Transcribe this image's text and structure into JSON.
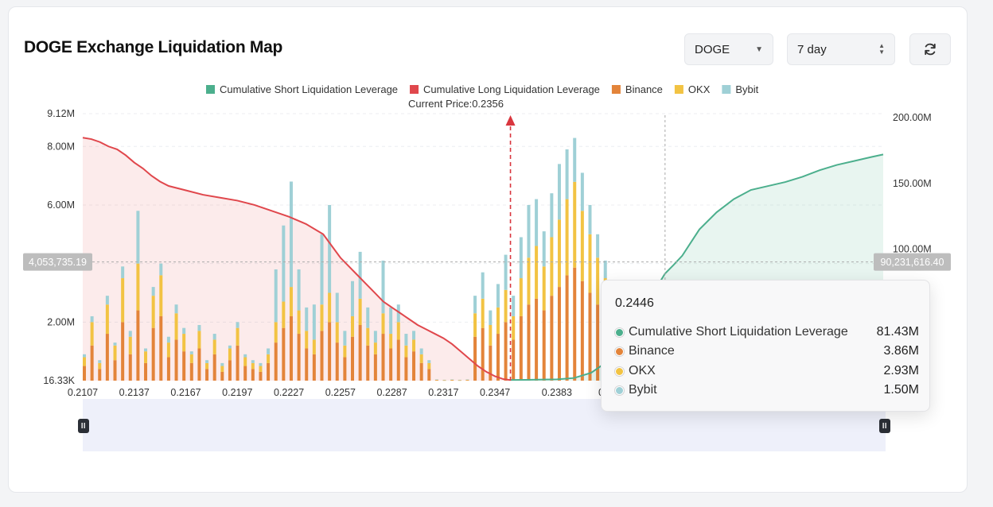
{
  "header": {
    "title": "DOGE Exchange Liquidation Map",
    "symbol_select": "DOGE",
    "period_select": "7 day"
  },
  "colors": {
    "short": "#4caf8d",
    "long": "#e0474c",
    "binance": "#e3843a",
    "okx": "#f2c343",
    "bybit": "#9fd0d6"
  },
  "chart_data": {
    "type": "bar",
    "title": "",
    "current_price_label": "Current Price:0.2356",
    "current_price": 0.2356,
    "legend": [
      "Cumulative Short Liquidation Leverage",
      "Cumulative Long Liquidation Leverage",
      "Binance",
      "OKX",
      "Bybit"
    ],
    "legend_position": "top",
    "x_range": [
      0.2107,
      0.2573
    ],
    "x_ticks": [
      "0.2107",
      "0.2137",
      "0.2167",
      "0.2197",
      "0.2227",
      "0.2257",
      "0.2287",
      "0.2317",
      "0.2347",
      "0.2383",
      "0.2416",
      "0.2446"
    ],
    "y_left_ticks": [
      "9.12M",
      "8.00M",
      "6.00M",
      "2.00M",
      "16.33K"
    ],
    "y_left_range": [
      16330,
      9120000
    ],
    "y_right_ticks": [
      "200.00M",
      "150.00M",
      "100.00M"
    ],
    "y_right_range": [
      0,
      200000000
    ],
    "crosshair_left_label": "4,053,735.19",
    "crosshair_right_label": "90,231,616.40",
    "crosshair_left_value": 4053735.19,
    "crosshair_right_value": 90231616.4,
    "hover_x": 0.2446,
    "hover_label": "0.2446",
    "long_curve": {
      "x": [
        0.2107,
        0.2112,
        0.2117,
        0.2122,
        0.2127,
        0.2132,
        0.2137,
        0.2142,
        0.2147,
        0.2152,
        0.2157,
        0.2167,
        0.2177,
        0.2187,
        0.2197,
        0.2207,
        0.2217,
        0.2227,
        0.2237,
        0.2247,
        0.2252,
        0.2257,
        0.2262,
        0.2267,
        0.2272,
        0.2277,
        0.2282,
        0.2287,
        0.2292,
        0.2297,
        0.2302,
        0.2307,
        0.2312,
        0.2317,
        0.2322,
        0.2327,
        0.2332,
        0.2337,
        0.2342,
        0.2347,
        0.2352,
        0.2356
      ],
      "y": [
        8.3,
        8.25,
        8.15,
        8.0,
        7.9,
        7.7,
        7.45,
        7.25,
        7.0,
        6.8,
        6.65,
        6.5,
        6.35,
        6.25,
        6.15,
        6.0,
        5.8,
        5.6,
        5.35,
        5.0,
        4.6,
        4.2,
        3.9,
        3.6,
        3.3,
        3.0,
        2.7,
        2.5,
        2.3,
        2.1,
        1.9,
        1.75,
        1.6,
        1.45,
        1.25,
        1.0,
        0.75,
        0.5,
        0.3,
        0.15,
        0.05,
        0.02
      ]
    },
    "short_curve": {
      "x": [
        0.2356,
        0.2365,
        0.2375,
        0.2383,
        0.2393,
        0.2403,
        0.2413,
        0.2423,
        0.2433,
        0.2438,
        0.2443,
        0.2446,
        0.2451,
        0.2456,
        0.2461,
        0.2466,
        0.2476,
        0.2486,
        0.2496,
        0.2506,
        0.2516,
        0.2526,
        0.2536,
        0.2546,
        0.2556,
        0.2566,
        0.2573
      ],
      "y": [
        0.5,
        0.6,
        0.8,
        1.0,
        2.0,
        6.0,
        15.0,
        30.0,
        50.0,
        62.0,
        75.0,
        81.43,
        88.0,
        95.0,
        105.0,
        115.0,
        128.0,
        138.0,
        145.0,
        148.0,
        151.0,
        155.0,
        160.0,
        164.0,
        167.0,
        170.0,
        172.0
      ]
    },
    "series": [
      {
        "name": "Binance",
        "values": [
          0.5,
          1.2,
          0.4,
          1.6,
          0.7,
          2.0,
          0.9,
          2.4,
          0.6,
          1.8,
          2.2,
          0.8,
          1.4,
          1.0,
          0.6,
          1.1,
          0.4,
          0.9,
          0.3,
          0.7,
          1.2,
          0.5,
          0.4,
          0.3,
          0.6,
          1.3,
          1.8,
          2.2,
          1.6,
          1.1,
          0.9,
          1.7,
          2.0,
          1.3,
          0.8,
          1.5,
          1.9,
          1.2,
          0.9,
          1.6,
          1.1,
          1.4,
          0.8,
          1.0,
          0.6,
          0.4,
          0.02,
          0.01,
          0.02,
          0.01,
          0.02,
          1.5,
          1.8,
          1.2,
          1.6,
          2.0,
          1.4,
          2.2,
          2.6,
          2.8,
          2.4,
          2.9,
          3.2,
          3.6,
          3.86,
          3.4,
          3.0,
          2.6,
          2.2,
          1.8,
          1.4
        ]
      },
      {
        "name": "OKX",
        "values": [
          0.3,
          0.8,
          0.2,
          1.0,
          0.5,
          1.5,
          0.6,
          1.6,
          0.4,
          1.1,
          1.4,
          0.5,
          0.9,
          0.6,
          0.3,
          0.6,
          0.2,
          0.5,
          0.2,
          0.4,
          0.6,
          0.3,
          0.2,
          0.2,
          0.3,
          0.7,
          0.9,
          1.0,
          0.8,
          0.6,
          0.5,
          0.9,
          1.0,
          0.7,
          0.4,
          0.7,
          0.9,
          0.6,
          0.4,
          0.7,
          0.5,
          0.6,
          0.4,
          0.4,
          0.3,
          0.2,
          0.01,
          0.01,
          0.01,
          0.01,
          0.01,
          0.8,
          1.0,
          0.7,
          0.9,
          1.1,
          0.8,
          1.3,
          1.6,
          1.8,
          1.5,
          2.0,
          2.3,
          2.6,
          2.93,
          2.4,
          2.0,
          1.6,
          1.3,
          1.0,
          0.8
        ]
      },
      {
        "name": "Bybit",
        "values": [
          0.1,
          0.2,
          0.1,
          0.3,
          0.1,
          0.4,
          0.2,
          1.8,
          0.1,
          0.3,
          0.4,
          0.2,
          0.3,
          0.2,
          0.1,
          0.2,
          0.1,
          0.2,
          0.1,
          0.1,
          0.2,
          0.1,
          0.1,
          0.1,
          0.2,
          1.8,
          2.6,
          3.6,
          1.4,
          0.8,
          1.2,
          2.4,
          3.0,
          1.0,
          0.5,
          1.2,
          1.6,
          0.7,
          0.4,
          1.8,
          0.9,
          0.6,
          0.4,
          0.3,
          0.2,
          0.1,
          0.01,
          0.01,
          0.01,
          0.01,
          0.01,
          0.6,
          0.9,
          0.5,
          0.8,
          1.2,
          0.7,
          1.4,
          1.8,
          1.6,
          1.2,
          1.5,
          1.9,
          1.7,
          1.5,
          1.3,
          1.0,
          0.8,
          0.6,
          0.5,
          0.4
        ]
      }
    ]
  },
  "tooltip": {
    "title": "0.2446",
    "rows": [
      {
        "name": "Cumulative Short Liquidation Leverage",
        "value": "81.43M",
        "color": "#4caf8d"
      },
      {
        "name": "Binance",
        "value": "3.86M",
        "color": "#e3843a"
      },
      {
        "name": "OKX",
        "value": "2.93M",
        "color": "#f2c343"
      },
      {
        "name": "Bybit",
        "value": "1.50M",
        "color": "#9fd0d6"
      }
    ]
  }
}
